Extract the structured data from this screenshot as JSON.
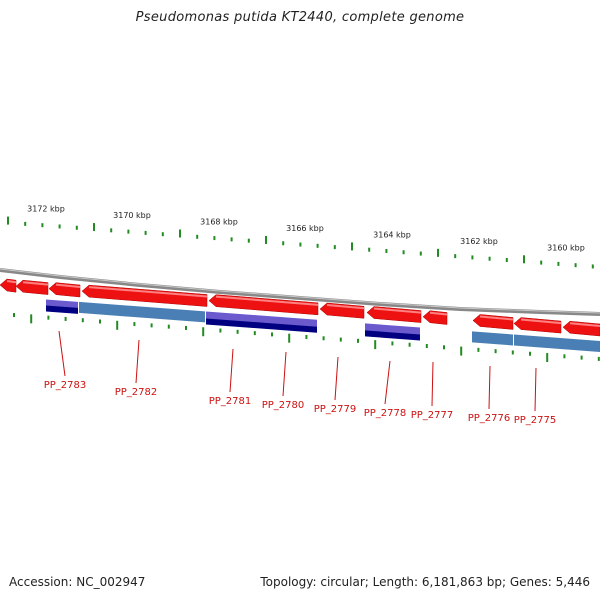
{
  "title": "Pseudomonas putida KT2440, complete genome",
  "footer": {
    "accession": "Accession: NC_002947",
    "summary": "Topology: circular; Length: 6,181,863 bp; Genes: 5,446"
  },
  "colors": {
    "backbone": "#8a8a8a",
    "forward_gene": "#ee1111",
    "blue_feature": "#4a7fb5",
    "purple_feature": "#6a5acd",
    "navy_feature": "#000080",
    "tick": "#228b22",
    "gene_label": "#cc1111"
  },
  "scale_labels": [
    "3172 kbp",
    "3170 kbp",
    "3168 kbp",
    "3166 kbp",
    "3164 kbp",
    "3162 kbp",
    "3160 kbp"
  ],
  "gene_labels": [
    "PP_2783",
    "PP_2782",
    "PP_2781",
    "PP_2780",
    "PP_2779",
    "PP_2778",
    "PP_2777",
    "PP_2776",
    "PP_2775"
  ]
}
